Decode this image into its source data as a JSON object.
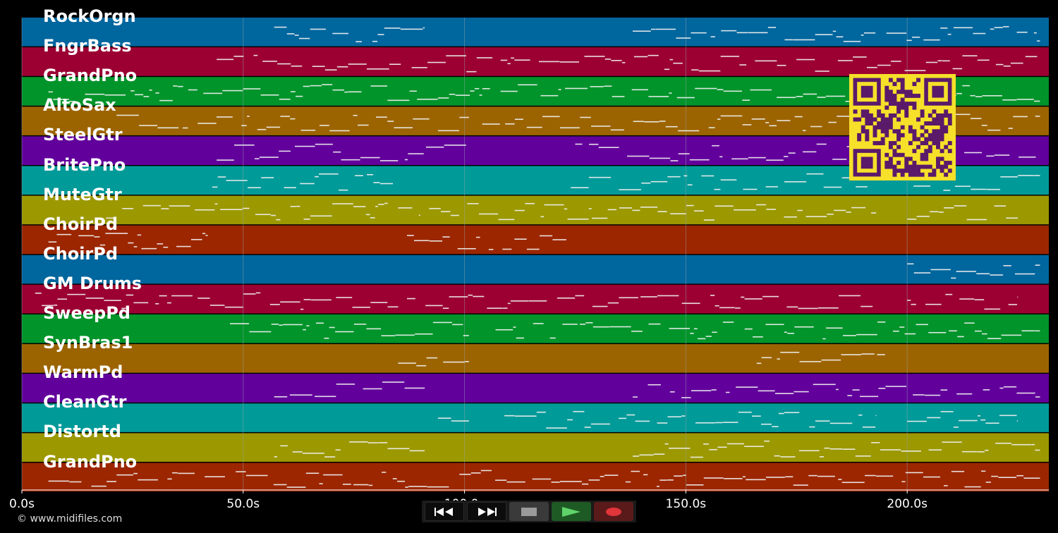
{
  "app": {
    "copyright": "© www.midifiles.com"
  },
  "timeline": {
    "max_seconds": 232,
    "ticks": [
      {
        "t": 0,
        "label": "0.0s"
      },
      {
        "t": 50,
        "label": "50.0s"
      },
      {
        "t": 100,
        "label": "100.0s"
      },
      {
        "t": 150,
        "label": "150.0s"
      },
      {
        "t": 200,
        "label": "200.0s"
      }
    ],
    "gridline_color": "#9aa6ad"
  },
  "tracks": [
    {
      "name": "RockOrgn",
      "color": "#00669e"
    },
    {
      "name": "FngrBass",
      "color": "#9c0033"
    },
    {
      "name": "GrandPno",
      "color": "#00942a"
    },
    {
      "name": "AltoSax",
      "color": "#9c6400"
    },
    {
      "name": "SteelGtr",
      "color": "#62009c"
    },
    {
      "name": "BritePno",
      "color": "#009a98"
    },
    {
      "name": "MuteGtr",
      "color": "#9c9800"
    },
    {
      "name": "ChoirPd",
      "color": "#9c2600"
    },
    {
      "name": "ChoirPd",
      "color": "#00669e"
    },
    {
      "name": "GM Drums",
      "color": "#9c0033"
    },
    {
      "name": "SweepPd",
      "color": "#00942a"
    },
    {
      "name": "SynBras1",
      "color": "#9c6400"
    },
    {
      "name": "WarmPd",
      "color": "#62009c"
    },
    {
      "name": "CleanGtr",
      "color": "#009a98"
    },
    {
      "name": "Distortd",
      "color": "#9c9800"
    },
    {
      "name": "GrandPno",
      "color": "#9c2600"
    }
  ],
  "note_color": "#f0f0f0",
  "qr": {
    "icon": "qr-code-icon",
    "fg": "#5a1a6a",
    "bg": "#f6e02a"
  },
  "transport": {
    "buttons": [
      {
        "name": "rewind-button",
        "icon": "rewind-icon"
      },
      {
        "name": "fast-forward-button",
        "icon": "fast-forward-icon"
      },
      {
        "name": "stop-button",
        "icon": "stop-icon"
      },
      {
        "name": "play-button",
        "icon": "play-icon"
      },
      {
        "name": "record-button",
        "icon": "record-icon"
      }
    ],
    "colors": {
      "play": "#5fd36a",
      "record": "#e0353a",
      "stop": "#9a9a9a"
    }
  }
}
